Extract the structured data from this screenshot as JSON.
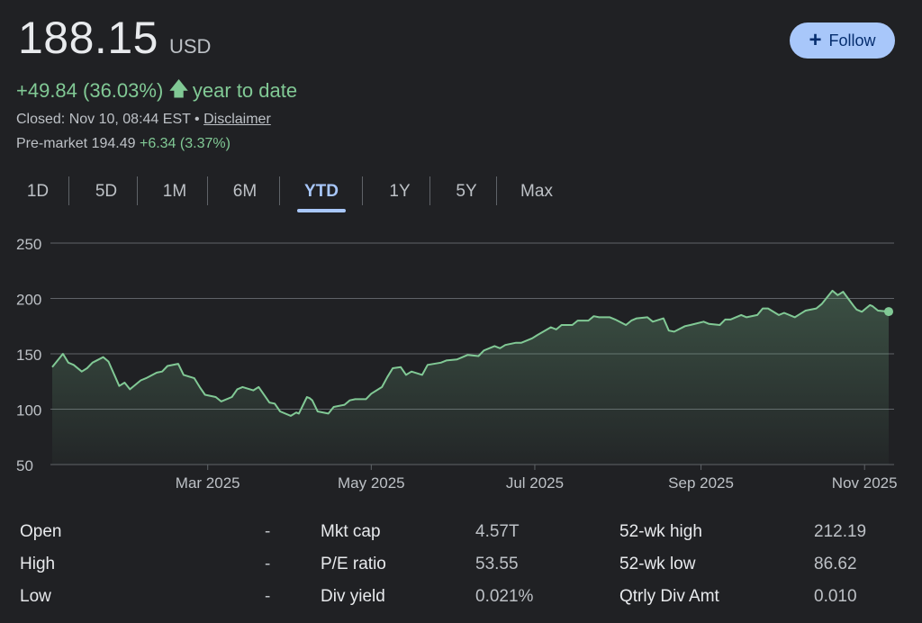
{
  "quote": {
    "price": "188.15",
    "currency": "USD",
    "change": "+49.84 (36.03%)",
    "change_period": "year to date",
    "closed_text": "Closed: Nov 10, 08:44 EST",
    "separator": "•",
    "disclaimer": "Disclaimer",
    "premarket_label": "Pre-market",
    "premarket_price": "194.49",
    "premarket_change": "+6.34 (3.37%)"
  },
  "follow": {
    "label": "Follow"
  },
  "tabs": [
    {
      "label": "1D"
    },
    {
      "label": "5D"
    },
    {
      "label": "1M"
    },
    {
      "label": "6M"
    },
    {
      "label": "YTD"
    },
    {
      "label": "1Y"
    },
    {
      "label": "5Y"
    },
    {
      "label": "Max"
    }
  ],
  "active_tab": "YTD",
  "colors": {
    "positive": "#81c995",
    "accent": "#a8c7fa",
    "line": "#81c995",
    "grid": "#5f6368"
  },
  "chart_data": {
    "type": "area",
    "ylim": [
      50,
      250
    ],
    "y_ticks": [
      50,
      100,
      150,
      200,
      250
    ],
    "x_ticks": [
      {
        "date": "2025-03-01",
        "label": "Mar 2025"
      },
      {
        "date": "2025-05-01",
        "label": "May 2025"
      },
      {
        "date": "2025-07-01",
        "label": "Jul 2025"
      },
      {
        "date": "2025-09-01",
        "label": "Sep 2025"
      },
      {
        "date": "2025-11-01",
        "label": "Nov 2025"
      }
    ],
    "grid": true,
    "last_point": {
      "date": "2025-11-10",
      "value": 188.15
    },
    "series": [
      {
        "x": [
          "2025-01-02",
          "2025-01-06",
          "2025-01-08",
          "2025-01-10",
          "2025-01-13",
          "2025-01-15",
          "2025-01-17",
          "2025-01-21",
          "2025-01-23",
          "2025-01-27",
          "2025-01-29",
          "2025-01-31",
          "2025-02-04",
          "2025-02-06",
          "2025-02-10",
          "2025-02-12",
          "2025-02-14",
          "2025-02-18",
          "2025-02-20",
          "2025-02-24",
          "2025-02-26",
          "2025-02-28",
          "2025-03-04",
          "2025-03-06",
          "2025-03-10",
          "2025-03-12",
          "2025-03-14",
          "2025-03-18",
          "2025-03-20",
          "2025-03-24",
          "2025-03-26",
          "2025-03-28",
          "2025-04-01",
          "2025-04-03",
          "2025-04-04",
          "2025-04-07",
          "2025-04-08",
          "2025-04-09",
          "2025-04-11",
          "2025-04-15",
          "2025-04-17",
          "2025-04-21",
          "2025-04-23",
          "2025-04-25",
          "2025-04-29",
          "2025-05-01",
          "2025-05-05",
          "2025-05-07",
          "2025-05-09",
          "2025-05-12",
          "2025-05-14",
          "2025-05-16",
          "2025-05-20",
          "2025-05-22",
          "2025-05-27",
          "2025-05-29",
          "2025-06-02",
          "2025-06-04",
          "2025-06-06",
          "2025-06-10",
          "2025-06-12",
          "2025-06-16",
          "2025-06-18",
          "2025-06-20",
          "2025-06-24",
          "2025-06-26",
          "2025-06-30",
          "2025-07-02",
          "2025-07-07",
          "2025-07-09",
          "2025-07-11",
          "2025-07-15",
          "2025-07-17",
          "2025-07-21",
          "2025-07-23",
          "2025-07-25",
          "2025-07-29",
          "2025-07-31",
          "2025-08-04",
          "2025-08-06",
          "2025-08-08",
          "2025-08-12",
          "2025-08-14",
          "2025-08-18",
          "2025-08-20",
          "2025-08-22",
          "2025-08-26",
          "2025-08-28",
          "2025-09-02",
          "2025-09-04",
          "2025-09-08",
          "2025-09-10",
          "2025-09-12",
          "2025-09-16",
          "2025-09-18",
          "2025-09-22",
          "2025-09-24",
          "2025-09-26",
          "2025-09-30",
          "2025-10-02",
          "2025-10-06",
          "2025-10-08",
          "2025-10-10",
          "2025-10-14",
          "2025-10-16",
          "2025-10-20",
          "2025-10-22",
          "2025-10-24",
          "2025-10-28",
          "2025-10-29",
          "2025-10-31",
          "2025-11-03",
          "2025-11-04",
          "2025-11-06",
          "2025-11-10"
        ],
        "values": [
          138,
          150,
          142,
          140,
          134,
          137,
          142,
          147,
          143,
          121,
          124,
          118,
          126,
          128,
          133,
          134,
          139,
          141,
          131,
          128,
          120,
          113,
          111,
          107,
          111,
          118,
          120,
          117,
          120,
          106,
          105,
          98,
          94,
          97,
          96,
          111,
          110,
          108,
          98,
          96,
          102,
          104,
          108,
          109,
          109,
          114,
          120,
          129,
          137,
          138,
          131,
          134,
          131,
          140,
          142,
          144,
          145,
          147,
          149,
          148,
          153,
          157,
          155,
          158,
          160,
          160,
          164,
          167,
          174,
          172,
          176,
          176,
          180,
          180,
          184,
          183,
          183,
          181,
          176,
          180,
          182,
          183,
          179,
          182,
          171,
          170,
          175,
          176,
          179,
          177,
          176,
          181,
          181,
          185,
          183,
          185,
          191,
          191,
          185,
          187,
          183,
          186,
          189,
          191,
          195,
          207,
          203,
          206,
          193,
          190,
          188,
          194,
          193,
          189,
          188.15
        ]
      }
    ]
  },
  "stats": [
    [
      {
        "label": "Open",
        "value": "-"
      },
      {
        "label": "Mkt cap",
        "value": "4.57T"
      },
      {
        "label": "52-wk high",
        "value": "212.19"
      }
    ],
    [
      {
        "label": "High",
        "value": "-"
      },
      {
        "label": "P/E ratio",
        "value": "53.55"
      },
      {
        "label": "52-wk low",
        "value": "86.62"
      }
    ],
    [
      {
        "label": "Low",
        "value": "-"
      },
      {
        "label": "Div yield",
        "value": "0.021%"
      },
      {
        "label": "Qtrly Div Amt",
        "value": "0.010"
      }
    ]
  ]
}
